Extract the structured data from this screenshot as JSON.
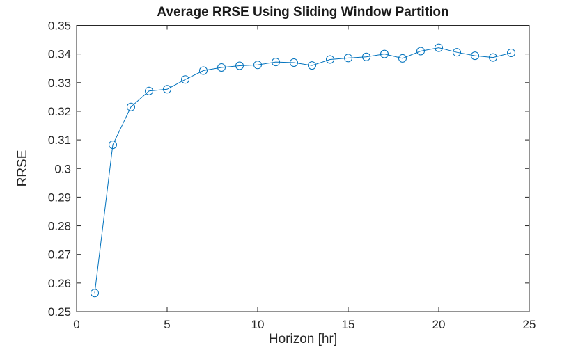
{
  "figure": {
    "background": "#ffffff"
  },
  "chart_data": {
    "type": "line",
    "title": "Average RRSE Using Sliding Window Partition",
    "xlabel": "Horizon [hr]",
    "ylabel": "RRSE",
    "x": [
      1,
      2,
      3,
      4,
      5,
      6,
      7,
      8,
      9,
      10,
      11,
      12,
      13,
      14,
      15,
      16,
      17,
      18,
      19,
      20,
      21,
      22,
      23,
      24
    ],
    "y": [
      0.2565,
      0.3083,
      0.3215,
      0.3271,
      0.3277,
      0.3311,
      0.3342,
      0.3353,
      0.3359,
      0.3362,
      0.3372,
      0.337,
      0.336,
      0.3381,
      0.3386,
      0.339,
      0.34,
      0.3385,
      0.341,
      0.3422,
      0.3406,
      0.3394,
      0.3388,
      0.3404
    ],
    "xlim": [
      0,
      25
    ],
    "ylim": [
      0.25,
      0.35
    ],
    "xticks": [
      0,
      5,
      10,
      15,
      20,
      25
    ],
    "xtick_labels": [
      "0",
      "5",
      "10",
      "15",
      "20",
      "25"
    ],
    "yticks": [
      0.25,
      0.26,
      0.27,
      0.28,
      0.29,
      0.3,
      0.31,
      0.32,
      0.33,
      0.34,
      0.35
    ],
    "ytick_labels": [
      "0.25",
      "0.26",
      "0.27",
      "0.28",
      "0.29",
      "0.3",
      "0.31",
      "0.32",
      "0.33",
      "0.34",
      "0.35"
    ],
    "line_color": "#0072BD",
    "marker": "circle",
    "marker_size": 5.5,
    "axis_color": "#262626",
    "grid": false,
    "legend_position": "none"
  }
}
